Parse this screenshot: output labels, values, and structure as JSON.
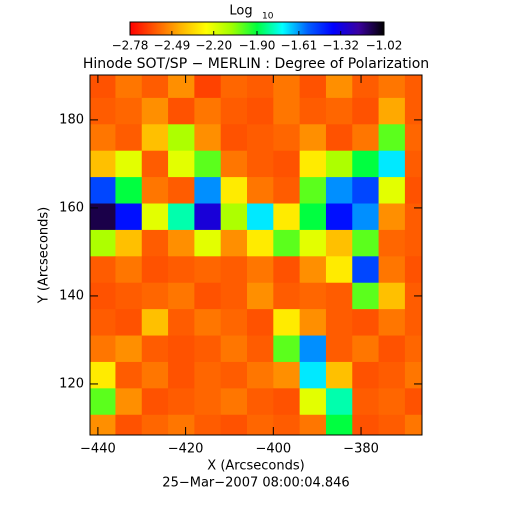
{
  "chart_data": {
    "type": "heatmap",
    "title": "Hinode SOT/SP − MERLIN : Degree of Polarization",
    "subtitle": "25−Mar−2007 08:00:04.846",
    "colorbar_title": "Log",
    "colorbar_title_sub": "10",
    "x_label": "X (Arcseconds)",
    "y_label": "Y (Arcseconds)",
    "xlim": [
      -441.8,
      -366.1
    ],
    "ylim": [
      108.4,
      190.2
    ],
    "xticks": [
      {
        "value": -440,
        "label": "−440"
      },
      {
        "value": -420,
        "label": "−420"
      },
      {
        "value": -400,
        "label": "−400"
      },
      {
        "value": -380,
        "label": "−380"
      }
    ],
    "yticks": [
      120,
      140,
      160,
      180
    ],
    "zlim": [
      -2.78,
      -1.02
    ],
    "zticks": [
      {
        "value": -2.78,
        "label": "−2.78"
      },
      {
        "value": -2.49,
        "label": "−2.49"
      },
      {
        "value": -2.2,
        "label": "−2.20"
      },
      {
        "value": -1.9,
        "label": "−1.90"
      },
      {
        "value": -1.61,
        "label": "−1.61"
      },
      {
        "value": -1.32,
        "label": "−1.32"
      },
      {
        "value": -1.02,
        "label": "−1.02"
      }
    ],
    "colorscale": [
      "#ff0000",
      "#ff5a00",
      "#ffb400",
      "#ffff00",
      "#a0ff00",
      "#00ff40",
      "#00ffff",
      "#0060ff",
      "#0000ff",
      "#3a00a0",
      "#000000"
    ],
    "x": [
      -439,
      -433,
      -427,
      -421,
      -415,
      -409,
      -403,
      -397,
      -391,
      -385,
      -379,
      -373,
      -367
    ],
    "y": [
      188,
      182,
      176,
      170,
      164,
      158,
      152,
      146,
      140,
      134,
      128,
      122,
      116,
      110
    ],
    "z": [
      [
        -2.62,
        -2.55,
        -2.6,
        -2.5,
        -2.65,
        -2.58,
        -2.6,
        -2.55,
        -2.62,
        -2.5,
        -2.6,
        -2.55,
        -2.6
      ],
      [
        -2.6,
        -2.58,
        -2.5,
        -2.62,
        -2.55,
        -2.6,
        -2.62,
        -2.55,
        -2.6,
        -2.58,
        -2.62,
        -2.45,
        -2.6
      ],
      [
        -2.55,
        -2.6,
        -2.4,
        -2.1,
        -2.5,
        -2.62,
        -2.6,
        -2.58,
        -2.5,
        -2.62,
        -2.55,
        -2.0,
        -2.58
      ],
      [
        -2.4,
        -2.2,
        -2.6,
        -2.2,
        -2.0,
        -2.55,
        -2.6,
        -2.62,
        -2.3,
        -2.1,
        -1.9,
        -1.7,
        -2.6
      ],
      [
        -1.5,
        -1.9,
        -2.55,
        -2.6,
        -1.6,
        -2.3,
        -2.55,
        -2.6,
        -2.0,
        -1.6,
        -1.5,
        -2.2,
        -2.62
      ],
      [
        -1.1,
        -1.4,
        -2.2,
        -1.8,
        -1.3,
        -2.1,
        -1.7,
        -2.3,
        -1.9,
        -1.4,
        -1.6,
        -2.5,
        -2.6
      ],
      [
        -2.1,
        -2.4,
        -2.6,
        -2.5,
        -2.2,
        -2.5,
        -2.3,
        -2.0,
        -2.2,
        -2.4,
        -2.0,
        -2.58,
        -2.6
      ],
      [
        -2.6,
        -2.55,
        -2.62,
        -2.6,
        -2.58,
        -2.6,
        -2.55,
        -2.62,
        -2.5,
        -2.3,
        -1.5,
        -2.55,
        -2.62
      ],
      [
        -2.62,
        -2.6,
        -2.58,
        -2.55,
        -2.62,
        -2.6,
        -2.5,
        -2.6,
        -2.58,
        -2.6,
        -2.0,
        -2.4,
        -2.6
      ],
      [
        -2.6,
        -2.62,
        -2.4,
        -2.6,
        -2.55,
        -2.58,
        -2.62,
        -2.3,
        -2.5,
        -2.6,
        -2.62,
        -2.55,
        -2.6
      ],
      [
        -2.55,
        -2.5,
        -2.6,
        -2.62,
        -2.6,
        -2.55,
        -2.6,
        -2.0,
        -1.6,
        -2.6,
        -2.55,
        -2.62,
        -2.58
      ],
      [
        -2.3,
        -2.6,
        -2.55,
        -2.62,
        -2.58,
        -2.6,
        -2.55,
        -2.5,
        -1.7,
        -2.4,
        -2.62,
        -2.6,
        -2.55
      ],
      [
        -2.0,
        -2.5,
        -2.62,
        -2.6,
        -2.58,
        -2.55,
        -2.6,
        -2.62,
        -2.2,
        -1.8,
        -2.6,
        -2.58,
        -2.62
      ],
      [
        -2.5,
        -2.62,
        -2.58,
        -2.55,
        -2.6,
        -2.62,
        -2.58,
        -2.6,
        -2.55,
        -1.9,
        -2.62,
        -2.6,
        -2.55
      ]
    ]
  }
}
